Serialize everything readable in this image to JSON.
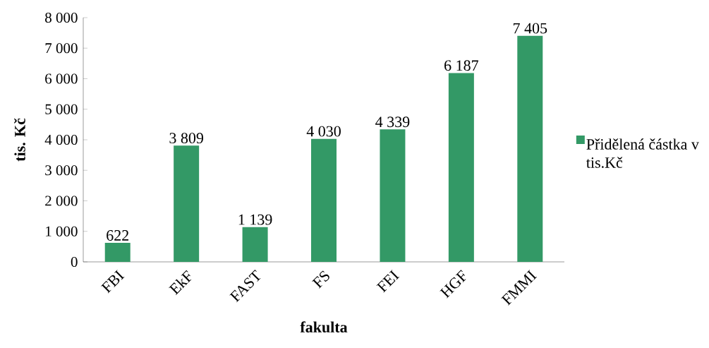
{
  "chart_data": {
    "type": "bar",
    "xlabel": "fakulta",
    "ylabel": "tis. Kč",
    "categories": [
      "FBI",
      "EkF",
      "FAST",
      "FS",
      "FEI",
      "HGF",
      "FMMI"
    ],
    "series": [
      {
        "name": "Přidělená částka v tis.Kč",
        "color": "#339966",
        "values": [
          622,
          3809,
          1139,
          4030,
          4339,
          6187,
          7405
        ],
        "value_labels": [
          "622",
          "3 809",
          "1 139",
          "4 030",
          "4 339",
          "6 187",
          "7 405"
        ]
      }
    ],
    "ylim": [
      0,
      8000
    ],
    "yticks": [
      0,
      {
        "value": 1000,
        "label": "1 000"
      },
      {
        "value": 2000,
        "label": "2 000"
      },
      {
        "value": 3000,
        "label": "3 000"
      },
      {
        "value": 4000,
        "label": "4 000"
      },
      {
        "value": 5000,
        "label": "5 000"
      },
      {
        "value": 6000,
        "label": "6 000"
      },
      {
        "value": 7000,
        "label": "7 000"
      },
      {
        "value": 8000,
        "label": "8 000"
      }
    ],
    "legend": "right"
  }
}
